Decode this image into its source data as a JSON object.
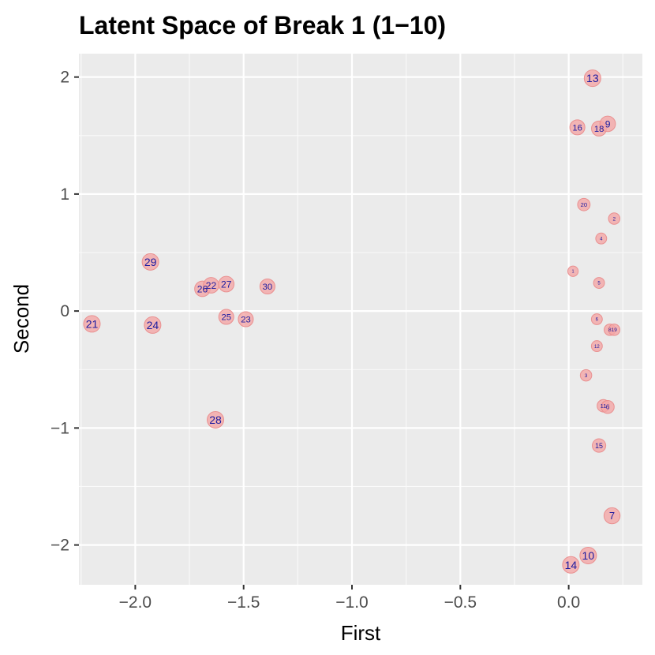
{
  "chart_data": {
    "type": "scatter",
    "title": "Latent Space of Break 1 (1−10)",
    "xlabel": "First",
    "ylabel": "Second",
    "xlim": [
      -2.26,
      0.34
    ],
    "ylim": [
      -2.34,
      2.2
    ],
    "x_ticks": [
      -2.0,
      -1.5,
      -1.0,
      -0.5,
      0.0
    ],
    "x_tick_labels": [
      "−2.0",
      "−1.5",
      "−1.0",
      "−0.5",
      "0.0"
    ],
    "y_ticks": [
      -2,
      -1,
      0,
      1,
      2
    ],
    "y_tick_labels": [
      "−2",
      "−1",
      "0",
      "1",
      "2"
    ],
    "grid": true,
    "panel_color": "#ebebeb",
    "point_color": "#f4a6a6",
    "label_color": "#1a1aa0",
    "points": [
      {
        "label": "13",
        "x": 0.11,
        "y": 1.99,
        "size": 1.0
      },
      {
        "label": "16",
        "x": 0.04,
        "y": 1.57,
        "size": 0.85
      },
      {
        "label": "18",
        "x": 0.14,
        "y": 1.56,
        "size": 0.85
      },
      {
        "label": "9",
        "x": 0.18,
        "y": 1.6,
        "size": 0.9
      },
      {
        "label": "20",
        "x": 0.07,
        "y": 0.91,
        "size": 0.6
      },
      {
        "label": "2",
        "x": 0.21,
        "y": 0.79,
        "size": 0.5
      },
      {
        "label": "4",
        "x": 0.15,
        "y": 0.62,
        "size": 0.45
      },
      {
        "label": "1",
        "x": 0.02,
        "y": 0.34,
        "size": 0.4
      },
      {
        "label": "5",
        "x": 0.14,
        "y": 0.24,
        "size": 0.45
      },
      {
        "label": "6",
        "x": 0.13,
        "y": -0.07,
        "size": 0.45
      },
      {
        "label": "8",
        "x": 0.19,
        "y": -0.16,
        "size": 0.5
      },
      {
        "label": "19",
        "x": 0.21,
        "y": -0.16,
        "size": 0.5
      },
      {
        "label": "12",
        "x": 0.13,
        "y": -0.3,
        "size": 0.45
      },
      {
        "label": "3",
        "x": 0.08,
        "y": -0.55,
        "size": 0.5
      },
      {
        "label": "11",
        "x": 0.16,
        "y": -0.81,
        "size": 0.6
      },
      {
        "label": "6",
        "x": 0.18,
        "y": -0.82,
        "size": 0.65
      },
      {
        "label": "15",
        "x": 0.14,
        "y": -1.15,
        "size": 0.7
      },
      {
        "label": "7",
        "x": 0.2,
        "y": -1.75,
        "size": 0.95
      },
      {
        "label": "10",
        "x": 0.09,
        "y": -2.09,
        "size": 1.0
      },
      {
        "label": "14",
        "x": 0.01,
        "y": -2.17,
        "size": 1.0
      },
      {
        "label": "29",
        "x": -1.93,
        "y": 0.42,
        "size": 1.0
      },
      {
        "label": "26",
        "x": -1.69,
        "y": 0.19,
        "size": 0.9
      },
      {
        "label": "22",
        "x": -1.65,
        "y": 0.22,
        "size": 0.9
      },
      {
        "label": "27",
        "x": -1.58,
        "y": 0.23,
        "size": 0.9
      },
      {
        "label": "30",
        "x": -1.39,
        "y": 0.21,
        "size": 0.85
      },
      {
        "label": "25",
        "x": -1.58,
        "y": -0.05,
        "size": 0.85
      },
      {
        "label": "23",
        "x": -1.49,
        "y": -0.07,
        "size": 0.85
      },
      {
        "label": "21",
        "x": -2.2,
        "y": -0.11,
        "size": 1.0
      },
      {
        "label": "24",
        "x": -1.92,
        "y": -0.12,
        "size": 1.0
      },
      {
        "label": "28",
        "x": -1.63,
        "y": -0.93,
        "size": 1.0
      }
    ]
  }
}
